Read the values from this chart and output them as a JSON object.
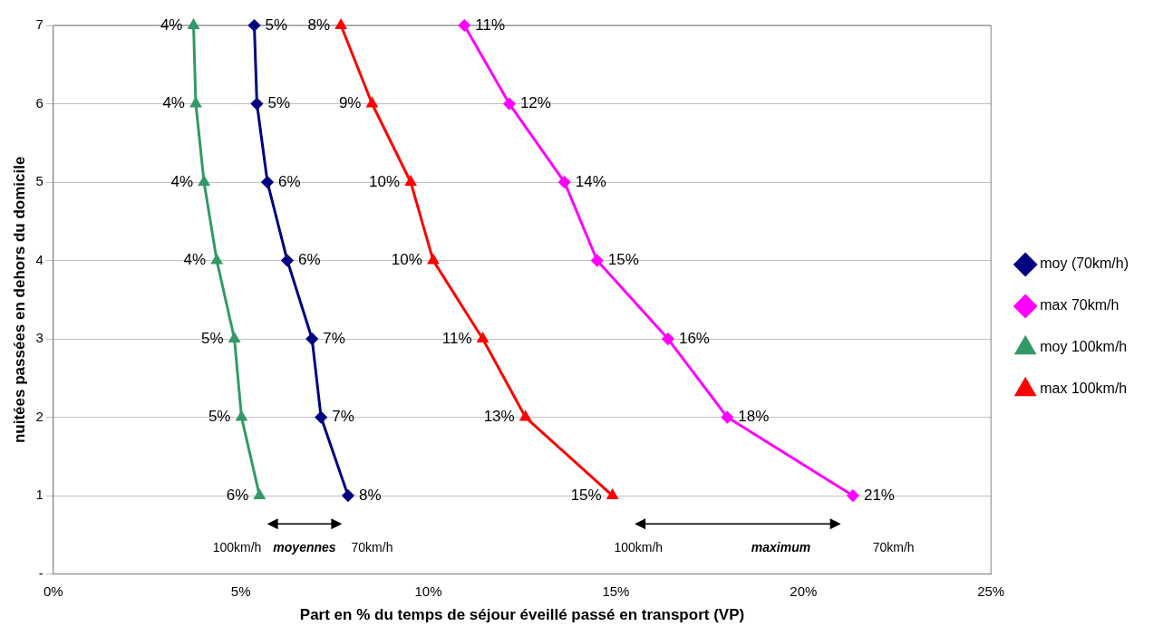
{
  "chart_data": {
    "type": "line",
    "orientation": "horizontal",
    "xlabel": "Part en % du temps de séjour éveillé passé en transport (VP)",
    "ylabel": "nuitées passées en dehors du domicile",
    "categories": [
      "7",
      "6",
      "5",
      "4",
      "3",
      "2",
      "1",
      "-"
    ],
    "xlim": [
      0,
      25
    ],
    "xticks": [
      {
        "value": 0,
        "label": "0%"
      },
      {
        "value": 5,
        "label": "5%"
      },
      {
        "value": 10,
        "label": "10%"
      },
      {
        "value": 15,
        "label": "15%"
      },
      {
        "value": 20,
        "label": "20%"
      },
      {
        "value": 25,
        "label": "25%"
      }
    ],
    "grid": "y",
    "legend": "right",
    "line_style": "solid",
    "series": [
      {
        "name": "moy (70km/h)",
        "color": "#000080",
        "marker": "diamond",
        "values": [
          5.36,
          5.43,
          5.71,
          6.24,
          6.9,
          7.14,
          7.86,
          null
        ],
        "value_labels": [
          "5%",
          "5%",
          "6%",
          "6%",
          "7%",
          "7%",
          "8%",
          null
        ]
      },
      {
        "name": "max 70km/h",
        "color": "#ff00ff",
        "marker": "diamond",
        "values": [
          10.96,
          12.16,
          13.63,
          14.5,
          16.39,
          17.97,
          21.32,
          null
        ],
        "value_labels": [
          "11%",
          "12%",
          "14%",
          "15%",
          "16%",
          "18%",
          "21%",
          null
        ]
      },
      {
        "name": "moy 100km/h",
        "color": "#339966",
        "marker": "triangle",
        "values": [
          3.74,
          3.8,
          4.02,
          4.36,
          4.83,
          5.02,
          5.5,
          null
        ],
        "value_labels": [
          "4%",
          "4%",
          "4%",
          "4%",
          "5%",
          "5%",
          "6%",
          null
        ]
      },
      {
        "name": "max 100km/h",
        "color": "#ff0000",
        "marker": "triangle",
        "values": [
          7.67,
          8.5,
          9.53,
          10.13,
          11.45,
          12.59,
          14.91,
          null
        ],
        "value_labels": [
          "8%",
          "9%",
          "10%",
          "10%",
          "11%",
          "13%",
          "15%",
          null
        ]
      }
    ],
    "annotations": [
      "100km/h",
      "moyennes",
      "70km/h",
      "100km/h",
      "maximum",
      "70km/h"
    ]
  }
}
